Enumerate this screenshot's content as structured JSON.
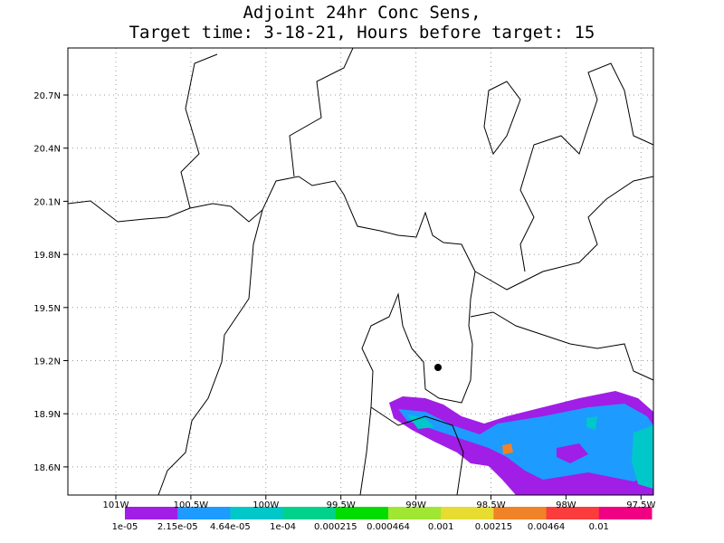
{
  "title": [
    "Adjoint 24hr Conc Sens,",
    "Target time: 3-18-21, Hours before target: 15"
  ],
  "map": {
    "lat_labels": [
      "20.7N",
      "20.4N",
      "20.1N",
      "19.8N",
      "19.5N",
      "19.2N",
      "18.9N",
      "18.6N"
    ],
    "lon_labels": [
      "101W",
      "100.5W",
      "100W",
      "99.5W",
      "99W",
      "98.5W",
      "98W",
      "97.5W"
    ]
  },
  "colorbar": {
    "labels": [
      "1e-05",
      "2.15e-05",
      "4.64e-05",
      "1e-04",
      "0.000215",
      "0.000464",
      "0.001",
      "0.00215",
      "0.00464",
      "0.01"
    ],
    "colors": [
      "#a01ee6",
      "#1e9bff",
      "#00c8c8",
      "#00d28c",
      "#00dc00",
      "#a0e632",
      "#e6dc32",
      "#f08228",
      "#fa3c3c",
      "#f00082"
    ]
  }
}
